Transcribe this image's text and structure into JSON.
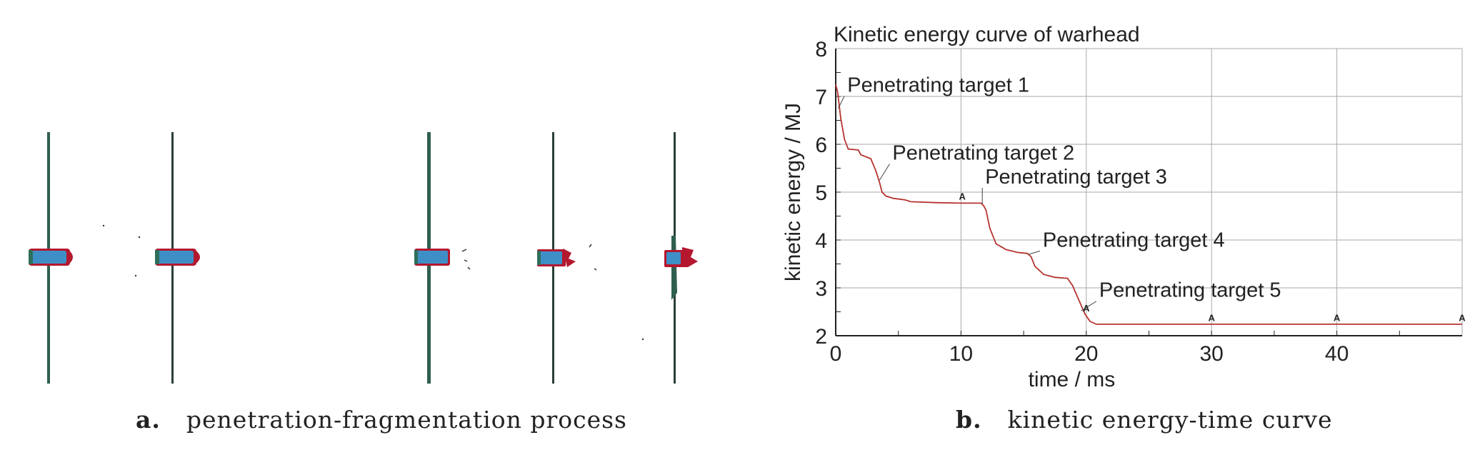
{
  "panel_a": {
    "caption_letter": "a.",
    "caption_text": "penetration-fragmentation process"
  },
  "panel_b": {
    "caption_letter": "b.",
    "caption_text": "kinetic energy-time curve"
  },
  "colors": {
    "target_plate": "#2f5f4f",
    "projectile_body": "#3f8fc7",
    "projectile_shell": "#b3182f",
    "curve": "#b5332f",
    "grid": "#aaaaaa",
    "axis": "#222222"
  },
  "chart_data": {
    "type": "line",
    "title": "Kinetic energy curve of warhead",
    "xlabel": "time / ms",
    "ylabel": "kinetic energy / MJ",
    "xlim": [
      0,
      50
    ],
    "ylim": [
      2,
      8
    ],
    "xticks": [
      0,
      10,
      20,
      30,
      40
    ],
    "yticks": [
      2,
      3,
      4,
      5,
      6,
      7,
      8
    ],
    "grid": true,
    "series": [
      {
        "values_x": [
          0,
          0.15,
          0.4,
          0.7,
          1.0,
          1.8,
          2.0,
          2.8,
          3.2,
          3.5,
          3.7,
          4.0,
          4.6,
          5.5,
          6.0,
          8.0,
          10.0,
          11.6,
          11.8,
          12.0,
          12.3,
          12.8,
          13.6,
          14.5,
          15.3,
          15.6,
          15.9,
          16.6,
          17.5,
          18.5,
          18.9,
          19.4,
          19.9,
          20.3,
          20.8,
          25,
          30,
          40,
          50
        ],
        "values_y": [
          7.25,
          7.1,
          6.55,
          6.1,
          5.9,
          5.88,
          5.78,
          5.7,
          5.45,
          5.2,
          5.0,
          4.92,
          4.87,
          4.84,
          4.8,
          4.78,
          4.77,
          4.77,
          4.72,
          4.62,
          4.25,
          3.92,
          3.8,
          3.74,
          3.72,
          3.65,
          3.45,
          3.28,
          3.22,
          3.2,
          3.05,
          2.75,
          2.45,
          2.3,
          2.24,
          2.24,
          2.24,
          2.24,
          2.24
        ]
      }
    ],
    "markers": [
      {
        "x": 10.1,
        "y": 4.78,
        "label": "A"
      },
      {
        "x": 20.0,
        "y": 2.45,
        "label": "A"
      },
      {
        "x": 30.0,
        "y": 2.25,
        "label": "A"
      },
      {
        "x": 40.0,
        "y": 2.25,
        "label": "A"
      },
      {
        "x": 50.0,
        "y": 2.25,
        "label": "A"
      }
    ],
    "annotations": [
      {
        "text": "Penetrating target 1",
        "x": 0.2,
        "y": 6.75,
        "tx": 0.7,
        "ty": 7.07
      },
      {
        "text": "Penetrating target 2",
        "x": 3.5,
        "y": 5.25,
        "tx": 4.3,
        "ty": 5.65
      },
      {
        "text": "Penetrating target 3",
        "x": 11.7,
        "y": 4.75,
        "tx": 11.7,
        "ty": 5.15
      },
      {
        "text": "Penetrating target 4",
        "x": 15.4,
        "y": 3.7,
        "tx": 16.3,
        "ty": 3.83
      },
      {
        "text": "Penetrating target 5",
        "x": 19.6,
        "y": 2.52,
        "tx": 20.8,
        "ty": 2.78
      }
    ]
  }
}
